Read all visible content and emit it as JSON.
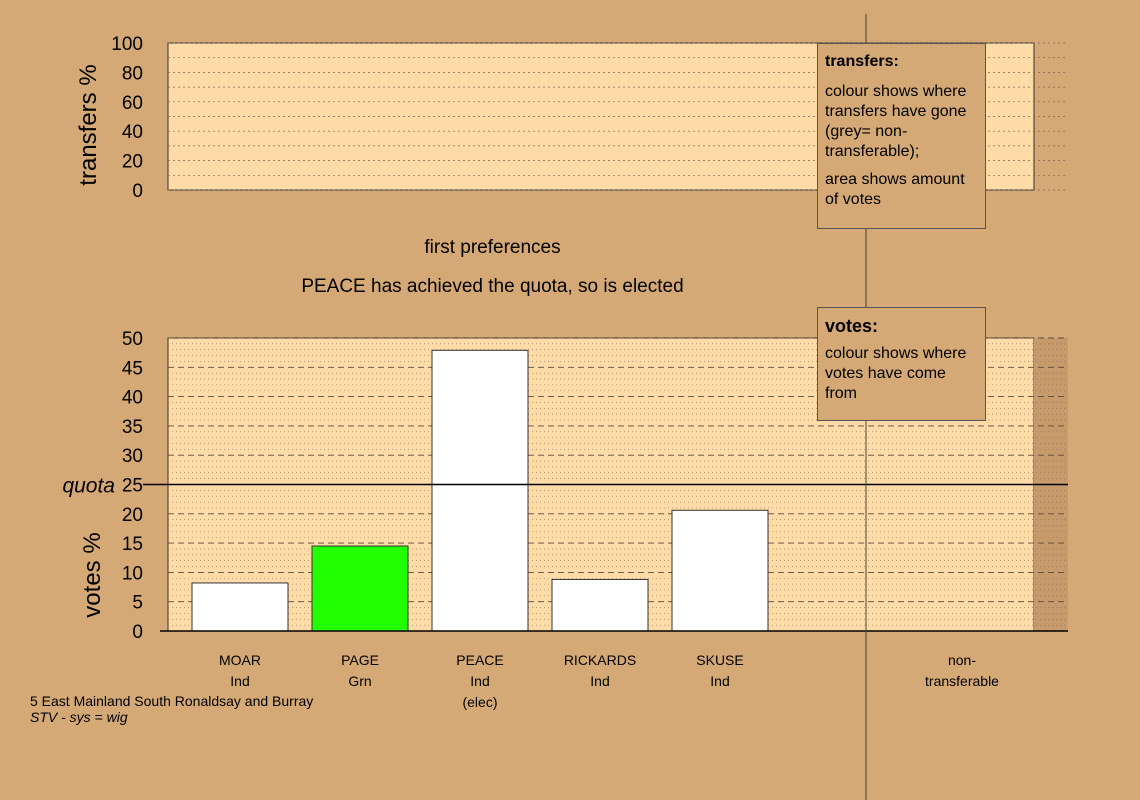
{
  "top_panel": {
    "ylabel": "transfers %",
    "ticks": [
      "0",
      "20",
      "40",
      "60",
      "80",
      "100"
    ],
    "stage_title": "first preferences"
  },
  "status": "PEACE has achieved the quota, so is elected",
  "legend_transfers": {
    "heading": "transfers:",
    "body": "colour shows where transfers have gone (grey= non-transferable);",
    "body2": "area shows amount of votes"
  },
  "legend_votes": {
    "heading": "votes:",
    "body": "colour shows where votes have come from"
  },
  "footer": {
    "constituency": "5 East Mainland South Ronaldsay and Burray",
    "system": "STV - sys = wig"
  },
  "colors": {
    "background": "#d4a976",
    "plot_fill": "#ffdba8",
    "bar_default": "#ffffff",
    "bar_green": "#22ff00",
    "quota_line": "#000000"
  },
  "chart_data": {
    "type": "bar",
    "title": "",
    "xlabel": "",
    "ylabel": "votes %",
    "ylim": [
      0,
      50
    ],
    "yticks": [
      0,
      5,
      10,
      15,
      20,
      25,
      30,
      35,
      40,
      45,
      50
    ],
    "quota": 25,
    "quota_label": "quota",
    "categories": [
      {
        "name": "MOAR",
        "party": "Ind",
        "note": "",
        "value": 8.2,
        "color": "#ffffff"
      },
      {
        "name": "PAGE",
        "party": "Grn",
        "note": "",
        "value": 14.5,
        "color": "#22ff00"
      },
      {
        "name": "PEACE",
        "party": "Ind",
        "note": "(elec)",
        "value": 47.9,
        "color": "#ffffff"
      },
      {
        "name": "RICKARDS",
        "party": "Ind",
        "note": "",
        "value": 8.8,
        "color": "#ffffff"
      },
      {
        "name": "SKUSE",
        "party": "Ind",
        "note": "",
        "value": 20.6,
        "color": "#ffffff"
      }
    ],
    "non_transferable": {
      "line1": "non-",
      "line2": "transferable",
      "value": 0
    }
  }
}
